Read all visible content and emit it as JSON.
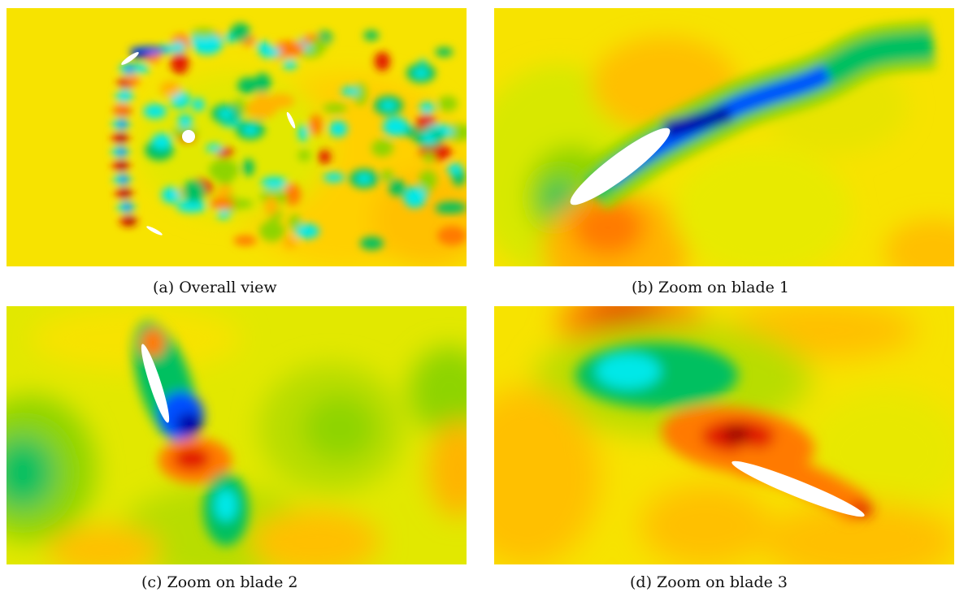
{
  "figure": {
    "panels": [
      {
        "id": "a",
        "caption": "(a) Overall view"
      },
      {
        "id": "b",
        "caption": "(b) Zoom on blade 1"
      },
      {
        "id": "c",
        "caption": "(c) Zoom on blade 2"
      },
      {
        "id": "d",
        "caption": "(d) Zoom on blade 3"
      }
    ],
    "colormap": [
      "#0000aa",
      "#0050ff",
      "#00e8e8",
      "#00c060",
      "#8ed400",
      "#d8e800",
      "#f7e300",
      "#ffb400",
      "#ff7a00",
      "#e21a00",
      "#8a0000"
    ]
  }
}
